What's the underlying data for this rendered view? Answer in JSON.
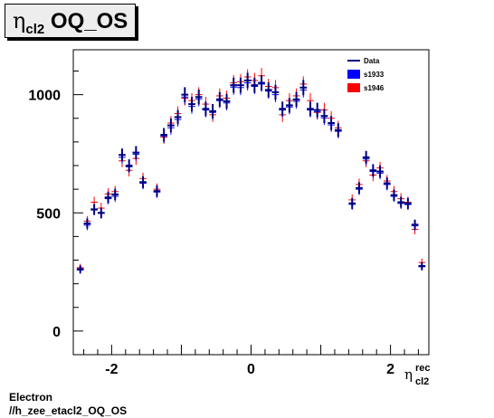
{
  "title": {
    "symbol": "η",
    "subscript": "cl2",
    "main": "OQ_OS"
  },
  "footer": {
    "line1": "Electron",
    "line2": "//h_zee_etacl2_OQ_OS"
  },
  "chart_data": {
    "type": "scatter",
    "title": "ηcl2 OQ_OS",
    "xlabel": {
      "symbol": "η",
      "superscript": "rec",
      "subscript": "cl2"
    },
    "ylabel": "",
    "xlim": [
      -2.55,
      2.55
    ],
    "ylim": [
      -100,
      1190
    ],
    "xticks": [
      -2,
      0,
      2
    ],
    "xtick_labels": [
      "-2",
      "0",
      "2"
    ],
    "yticks": [
      0,
      500,
      1000
    ],
    "ytick_labels": [
      "0",
      "500",
      "1000"
    ],
    "grid": false,
    "legend_position": "top-right",
    "legend": [
      {
        "label": "Data",
        "style": "line",
        "color": "#00007f"
      },
      {
        "label": "s1933",
        "style": "box",
        "color": "#0000ff"
      },
      {
        "label": "s1946",
        "style": "box",
        "color": "#ff0000"
      }
    ],
    "x": [
      -2.45,
      -2.35,
      -2.25,
      -2.15,
      -2.05,
      -1.95,
      -1.85,
      -1.75,
      -1.65,
      -1.55,
      -1.45,
      -1.35,
      -1.25,
      -1.15,
      -1.05,
      -0.95,
      -0.85,
      -0.75,
      -0.65,
      -0.55,
      -0.45,
      -0.35,
      -0.25,
      -0.15,
      -0.05,
      0.05,
      0.15,
      0.25,
      0.35,
      0.45,
      0.55,
      0.65,
      0.75,
      0.85,
      0.95,
      1.05,
      1.15,
      1.25,
      1.35,
      1.45,
      1.55,
      1.65,
      1.75,
      1.85,
      1.95,
      2.05,
      2.15,
      2.25,
      2.35,
      2.45
    ],
    "series": [
      {
        "name": "Data",
        "color": "#00007f",
        "values": [
          262,
          455,
          515,
          500,
          565,
          578,
          745,
          700,
          755,
          630,
          0,
          592,
          830,
          870,
          905,
          1000,
          960,
          990,
          940,
          930,
          980,
          972,
          1040,
          1040,
          1060,
          1040,
          1050,
          1020,
          1010,
          940,
          955,
          980,
          1030,
          940,
          935,
          910,
          880,
          850,
          0,
          540,
          605,
          735,
          680,
          675,
          625,
          575,
          545,
          540,
          450,
          275
        ]
      },
      {
        "name": "s1933",
        "color": "#0000ff",
        "values": [
          258,
          448,
          512,
          498,
          560,
          570,
          735,
          695,
          748,
          625,
          0,
          588,
          825,
          860,
          895,
          990,
          950,
          982,
          935,
          925,
          975,
          965,
          1032,
          1030,
          1050,
          1035,
          1045,
          1015,
          1000,
          935,
          948,
          972,
          1020,
          935,
          928,
          902,
          872,
          845,
          0,
          536,
          600,
          728,
          675,
          668,
          620,
          570,
          540,
          535,
          445,
          272
        ]
      },
      {
        "name": "s1946",
        "color": "#ff0000",
        "values": [
          268,
          465,
          545,
          520,
          580,
          590,
          720,
          680,
          730,
          645,
          0,
          600,
          820,
          880,
          920,
          985,
          975,
          1000,
          960,
          915,
          995,
          985,
          1050,
          1055,
          1075,
          1060,
          1080,
          1035,
          1030,
          915,
          975,
          995,
          1045,
          975,
          925,
          935,
          900,
          860,
          0,
          555,
          620,
          720,
          660,
          690,
          635,
          590,
          560,
          545,
          430,
          290
        ]
      }
    ]
  }
}
